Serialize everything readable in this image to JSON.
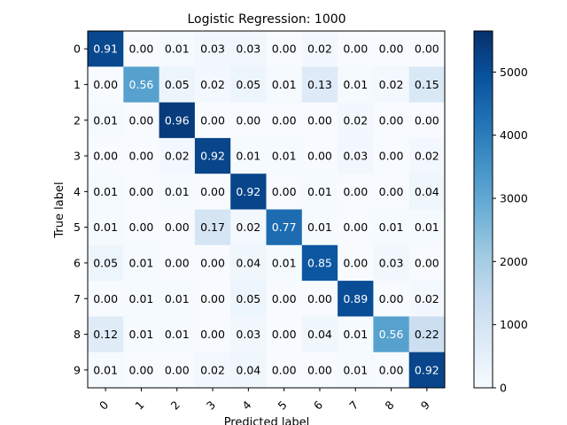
{
  "chart_data": {
    "type": "heatmap",
    "title": "Logistic Regression: 1000",
    "xlabel": "Predicted label",
    "ylabel": "True label",
    "x_categories": [
      "0",
      "1",
      "2",
      "3",
      "4",
      "5",
      "6",
      "7",
      "8",
      "9"
    ],
    "y_categories": [
      "0",
      "1",
      "2",
      "3",
      "4",
      "5",
      "6",
      "7",
      "8",
      "9"
    ],
    "matrix": [
      [
        0.91,
        0.0,
        0.01,
        0.03,
        0.03,
        0.0,
        0.02,
        0.0,
        0.0,
        0.0
      ],
      [
        0.0,
        0.56,
        0.05,
        0.02,
        0.05,
        0.01,
        0.13,
        0.01,
        0.02,
        0.15
      ],
      [
        0.01,
        0.0,
        0.96,
        0.0,
        0.0,
        0.0,
        0.0,
        0.02,
        0.0,
        0.0
      ],
      [
        0.0,
        0.0,
        0.02,
        0.92,
        0.01,
        0.01,
        0.0,
        0.03,
        0.0,
        0.02
      ],
      [
        0.01,
        0.0,
        0.01,
        0.0,
        0.92,
        0.0,
        0.01,
        0.0,
        0.0,
        0.04
      ],
      [
        0.01,
        0.0,
        0.0,
        0.17,
        0.02,
        0.77,
        0.01,
        0.0,
        0.01,
        0.01
      ],
      [
        0.05,
        0.01,
        0.0,
        0.0,
        0.04,
        0.01,
        0.85,
        0.0,
        0.03,
        0.0
      ],
      [
        0.0,
        0.01,
        0.01,
        0.0,
        0.05,
        0.0,
        0.0,
        0.89,
        0.0,
        0.02
      ],
      [
        0.12,
        0.01,
        0.01,
        0.0,
        0.03,
        0.0,
        0.04,
        0.01,
        0.56,
        0.22
      ],
      [
        0.01,
        0.0,
        0.0,
        0.02,
        0.04,
        0.0,
        0.0,
        0.01,
        0.0,
        0.92
      ]
    ],
    "colorbar": {
      "ticks": [
        "0",
        "1000",
        "2000",
        "3000",
        "4000",
        "5000"
      ],
      "range": [
        0,
        5650
      ],
      "colormap": "Blues"
    },
    "colors": {
      "low": "#f7fbff",
      "high": "#08306b",
      "text_dark": "#000000",
      "text_light": "#ffffff"
    }
  }
}
